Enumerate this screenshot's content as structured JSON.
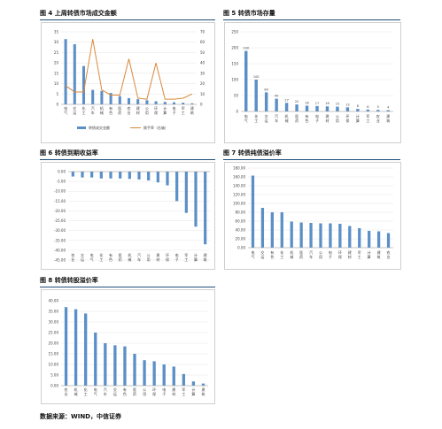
{
  "figures": {
    "fig4_title": "图 4 上周转债市场成交金额",
    "fig5_title": "图 5 转债市场存量",
    "fig6_title": "图 6 转债到期收益率",
    "fig7_title": "图 7 转债纯债溢价率",
    "fig8_title": "图 8 转债转股溢价率"
  },
  "footer": "数据来源：WIND，中信证券",
  "colors": {
    "bar": "#5b8fc7",
    "line": "#d9893a",
    "rule": "#1f4e79"
  },
  "chart_data": [
    {
      "id": "fig4",
      "type": "bar",
      "categories": [
        "电\n气",
        "交\n运",
        "化\n工",
        "汽\n车",
        "机\n械",
        "有\n色",
        "医\n药",
        "农\n业",
        "建\n材",
        "公\n用",
        "环\n保",
        "计\n算",
        "电\n子",
        "军\n工",
        "建\n筑"
      ],
      "series": [
        {
          "name": "转债成交金额",
          "type": "bar",
          "axis": "left",
          "values": [
            31.5,
            29,
            18.5,
            7,
            6.5,
            5.5,
            4,
            3,
            2.5,
            2,
            1.5,
            1.2,
            1,
            0.8,
            0.5
          ]
        },
        {
          "name": "换手率（右轴）",
          "type": "line",
          "axis": "right",
          "values": [
            18,
            12,
            12,
            63,
            14,
            9,
            9,
            44,
            6,
            5,
            40,
            5,
            5,
            6,
            10
          ]
        }
      ],
      "ylim": [
        0,
        35
      ],
      "y2lim": [
        0,
        70
      ],
      "yticks": [
        0,
        5,
        10,
        15,
        20,
        25,
        30,
        35
      ],
      "y2ticks": [
        0,
        10,
        20,
        30,
        40,
        50,
        60,
        70
      ],
      "legend": "bottom"
    },
    {
      "id": "fig5",
      "type": "bar",
      "categories": [
        "电\n气",
        "化\n工",
        "交\n运",
        "汽\n车",
        "机\n械",
        "医\n药",
        "有\n色",
        "电\n子",
        "建\n材",
        "公\n用",
        "环\n保",
        "计\n算",
        "军\n工",
        "农\n业",
        "建\n筑"
      ],
      "values": [
        190,
        100,
        60,
        40,
        27,
        22,
        18,
        17,
        16,
        15,
        13,
        8,
        6,
        5,
        4
      ],
      "ylim": [
        0,
        250
      ],
      "yticks": [
        0,
        50,
        100,
        150,
        200,
        250
      ],
      "data_labels": true
    },
    {
      "id": "fig6",
      "type": "bar",
      "categories": [
        "农\n业",
        "交\n运",
        "电\n气",
        "化\n工",
        "有\n色",
        "医\n药",
        "机\n械",
        "汽\n车",
        "公\n用",
        "建\n材",
        "环\n保",
        "电\n子",
        "军\n工",
        "计\n算",
        "建\n筑"
      ],
      "values": [
        -2.5,
        -3,
        -3,
        -3.5,
        -3.5,
        -3.5,
        -3.7,
        -4,
        -4.5,
        -5.5,
        -7,
        -15,
        -21,
        -28,
        -37
      ],
      "ylim": [
        -45,
        0
      ],
      "yticks": [
        0,
        -5,
        -10,
        -15,
        -20,
        -25,
        -30,
        -35,
        -40,
        -45
      ],
      "ytick_labels": [
        "0.00",
        "-5.00",
        "-10.00",
        "-15.00",
        "-20.00",
        "-25.00",
        "-30.00",
        "-35.00",
        "-40.00",
        "-45.00"
      ]
    },
    {
      "id": "fig7",
      "type": "bar",
      "categories": [
        "电\n气",
        "交\n运",
        "有\n色",
        "化\n工",
        "机\n械",
        "医\n药",
        "汽\n车",
        "公\n用",
        "电\n子",
        "环\n保",
        "建\n材",
        "军\n工",
        "计\n算",
        "建\n筑",
        "农\n业"
      ],
      "values": [
        163,
        90,
        80,
        80,
        59,
        57,
        56,
        55,
        55,
        54,
        49,
        44,
        38,
        37,
        33
      ],
      "ylim": [
        0,
        180
      ],
      "yticks": [
        0,
        20,
        40,
        60,
        80,
        100,
        120,
        140,
        160,
        180
      ],
      "ytick_labels": [
        "0.00",
        "20.00",
        "40.00",
        "60.00",
        "80.00",
        "100.00",
        "120.00",
        "140.00",
        "160.00",
        "180.00"
      ]
    },
    {
      "id": "fig8",
      "type": "bar",
      "categories": [
        "农\n业",
        "机\n械",
        "化\n工",
        "电\n气",
        "汽\n车",
        "交\n运",
        "有\n色",
        "医\n药",
        "公\n用",
        "环\n保",
        "电\n子",
        "建\n材",
        "军\n工",
        "计\n算",
        "建\n筑"
      ],
      "values": [
        37,
        36,
        34,
        25,
        20,
        19,
        18.5,
        15,
        12,
        11.5,
        10,
        9,
        5.5,
        2,
        1
      ],
      "ylim": [
        0,
        40
      ],
      "yticks": [
        0,
        5,
        10,
        15,
        20,
        25,
        30,
        35,
        40
      ],
      "ytick_labels": [
        "0.00",
        "5.00",
        "10.00",
        "15.00",
        "20.00",
        "25.00",
        "30.00",
        "35.00",
        "40.00"
      ]
    }
  ]
}
